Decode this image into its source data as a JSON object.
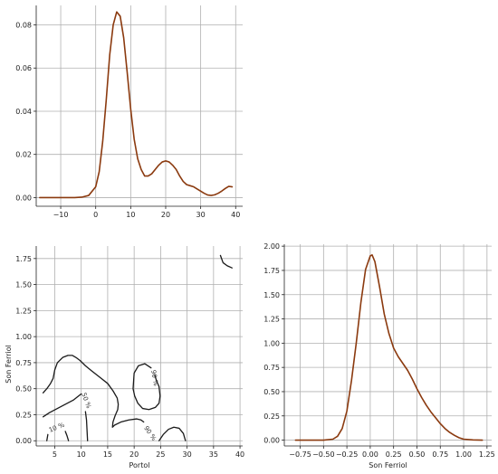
{
  "colors": {
    "curve": "#8b3a0f",
    "contour": "#1a1a1a",
    "grid": "#b0b0b0"
  },
  "chart_data": [
    {
      "id": "portol-density",
      "type": "line",
      "title": "",
      "xlabel": "",
      "ylabel": "",
      "xlim": [
        -17,
        42
      ],
      "ylim": [
        -0.004,
        0.089
      ],
      "xticks": [
        -10,
        0,
        10,
        20,
        30,
        40
      ],
      "yticks": [
        0.0,
        0.02,
        0.04,
        0.06,
        0.08
      ],
      "ytick_labels": [
        "0.00",
        "0.02",
        "0.04",
        "0.06",
        "0.08"
      ],
      "grid": true,
      "series": [
        {
          "x": [
            -16,
            -10,
            -6,
            -4,
            -2,
            0,
            1,
            2,
            3,
            4,
            5,
            6,
            7,
            8,
            9,
            10,
            11,
            12,
            13,
            14,
            15,
            16,
            17,
            18,
            19,
            20,
            21,
            22,
            23,
            24,
            25,
            26,
            27,
            28,
            29,
            30,
            31,
            32,
            33,
            34,
            35,
            36,
            37,
            38,
            39
          ],
          "y": [
            0.0,
            0.0,
            0.0,
            0.0002,
            0.001,
            0.005,
            0.012,
            0.026,
            0.045,
            0.066,
            0.08,
            0.086,
            0.084,
            0.074,
            0.058,
            0.041,
            0.027,
            0.018,
            0.013,
            0.01,
            0.01,
            0.011,
            0.013,
            0.015,
            0.0165,
            0.017,
            0.0165,
            0.015,
            0.013,
            0.01,
            0.0075,
            0.006,
            0.0055,
            0.005,
            0.004,
            0.003,
            0.002,
            0.0012,
            0.001,
            0.0013,
            0.002,
            0.003,
            0.0042,
            0.0052,
            0.005
          ]
        }
      ]
    },
    {
      "id": "joint-contour",
      "type": "line",
      "title": "",
      "xlabel": "Portol",
      "ylabel": "Son Ferriol",
      "xlim": [
        1.5,
        40.5
      ],
      "ylim": [
        -0.05,
        1.87
      ],
      "xticks": [
        5,
        10,
        15,
        20,
        25,
        30,
        35,
        40
      ],
      "yticks": [
        0.0,
        0.25,
        0.5,
        0.75,
        1.0,
        1.25,
        1.5,
        1.75
      ],
      "ytick_labels": [
        "0.00",
        "0.25",
        "0.50",
        "0.75",
        "1.00",
        "1.25",
        "1.50",
        "1.75"
      ],
      "grid": true,
      "contour_labels": [
        {
          "text": "10 %",
          "x": 5.5,
          "y": 0.11,
          "angle": -22
        },
        {
          "text": "50 %",
          "x": 10.6,
          "y": 0.38,
          "angle": 70
        },
        {
          "text": "90 %",
          "x": 23.5,
          "y": 0.6,
          "angle": 80
        },
        {
          "text": "90 %",
          "x": 22.7,
          "y": 0.06,
          "angle": 55
        }
      ],
      "series": [
        {
          "x": [
            2.8,
            3.5,
            4.2,
            4.7,
            5.0,
            5.5,
            6.5,
            7.5,
            8.3,
            9.0,
            9.8,
            10.8,
            12.0,
            13.5,
            15.0,
            16.0,
            16.8,
            17.0,
            16.9,
            16.4,
            16.0,
            15.9,
            16.3,
            17.5,
            19.0,
            20.5,
            21.3,
            21.8
          ],
          "y": [
            0.46,
            0.5,
            0.55,
            0.6,
            0.68,
            0.75,
            0.8,
            0.82,
            0.82,
            0.8,
            0.77,
            0.72,
            0.67,
            0.61,
            0.55,
            0.48,
            0.41,
            0.35,
            0.3,
            0.24,
            0.18,
            0.13,
            0.15,
            0.18,
            0.2,
            0.21,
            0.2,
            0.18
          ]
        },
        {
          "x": [
            2.8,
            4.0,
            5.5,
            7.0,
            8.5,
            9.5,
            10.0
          ],
          "y": [
            0.23,
            0.27,
            0.31,
            0.35,
            0.39,
            0.43,
            0.45
          ]
        },
        {
          "x": [
            3.5,
            3.6,
            3.7
          ],
          "y": [
            0.0,
            0.03,
            0.06
          ]
        },
        {
          "x": [
            7.0,
            7.3,
            7.6
          ],
          "y": [
            0.09,
            0.05,
            0.0
          ]
        },
        {
          "x": [
            10.8,
            11.0,
            11.1,
            11.2
          ],
          "y": [
            0.28,
            0.2,
            0.1,
            0.0
          ]
        },
        {
          "x": [
            23.2,
            22.0,
            20.8,
            20.0,
            19.8,
            20.1,
            20.7,
            21.6,
            22.8,
            24.0,
            24.7,
            24.9,
            24.7,
            24.2,
            23.9
          ],
          "y": [
            0.7,
            0.74,
            0.72,
            0.65,
            0.5,
            0.43,
            0.36,
            0.31,
            0.3,
            0.32,
            0.36,
            0.43,
            0.52,
            0.58,
            0.63
          ]
        },
        {
          "x": [
            24.7,
            25.5,
            26.5,
            27.5,
            28.5,
            29.3,
            29.7
          ],
          "y": [
            0.0,
            0.06,
            0.11,
            0.13,
            0.12,
            0.07,
            0.0
          ]
        },
        {
          "x": [
            36.3,
            36.8,
            37.6,
            38.5
          ],
          "y": [
            1.78,
            1.71,
            1.68,
            1.66
          ]
        }
      ]
    },
    {
      "id": "son-ferriol-density",
      "type": "line",
      "title": "",
      "xlabel": "Son Ferriol",
      "ylabel": "",
      "xlim": [
        -0.92,
        1.3
      ],
      "ylim": [
        -0.06,
        2.02
      ],
      "xticks": [
        -0.75,
        -0.5,
        -0.25,
        0.0,
        0.25,
        0.5,
        0.75,
        1.0,
        1.25
      ],
      "xtick_labels": [
        "−0.75",
        "−0.50",
        "−0.25",
        "0.00",
        "0.25",
        "0.50",
        "0.75",
        "1.00",
        "1.25"
      ],
      "yticks": [
        0.0,
        0.25,
        0.5,
        0.75,
        1.0,
        1.25,
        1.5,
        1.75,
        2.0
      ],
      "ytick_labels": [
        "0.00",
        "0.25",
        "0.50",
        "0.75",
        "1.00",
        "1.25",
        "1.50",
        "1.75",
        "2.00"
      ],
      "grid": true,
      "series": [
        {
          "x": [
            -0.8,
            -0.5,
            -0.4,
            -0.35,
            -0.3,
            -0.25,
            -0.2,
            -0.15,
            -0.1,
            -0.05,
            0.0,
            0.02,
            0.05,
            0.1,
            0.15,
            0.2,
            0.25,
            0.3,
            0.35,
            0.4,
            0.45,
            0.5,
            0.55,
            0.6,
            0.65,
            0.7,
            0.75,
            0.8,
            0.85,
            0.9,
            0.95,
            1.0,
            1.1,
            1.2
          ],
          "y": [
            0.0,
            0.0,
            0.01,
            0.04,
            0.12,
            0.3,
            0.62,
            1.0,
            1.42,
            1.76,
            1.9,
            1.91,
            1.84,
            1.58,
            1.3,
            1.1,
            0.95,
            0.86,
            0.79,
            0.72,
            0.63,
            0.53,
            0.44,
            0.36,
            0.29,
            0.23,
            0.17,
            0.12,
            0.08,
            0.05,
            0.025,
            0.01,
            0.002,
            0.0
          ]
        }
      ]
    }
  ]
}
